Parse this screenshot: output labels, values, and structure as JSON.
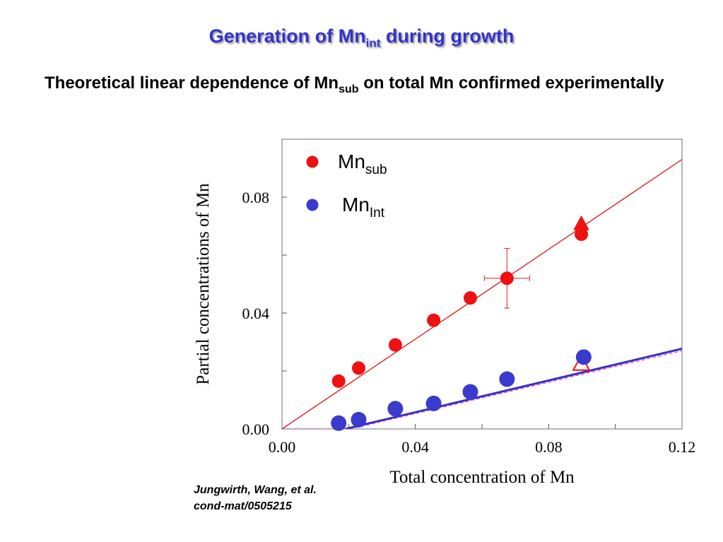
{
  "page": {
    "title_main": "Generation of Mn",
    "title_sub": "int",
    "title_rest": " during growth",
    "subtitle_before": "Theoretical linear dependence of Mn",
    "subtitle_sub": "sub",
    "subtitle_rest": " on total Mn confirmed experimentally",
    "citation_line1": "Jungwirth, Wang, et al.",
    "citation_line2": "cond-mat/0505215"
  },
  "colors": {
    "title": "#3333cc",
    "mn_sub": "#ee1111",
    "mn_int": "#3a3acc",
    "fit_sub": "#dd2222",
    "fit_int": "#3333bb",
    "dashed": "#ee44ee"
  },
  "chart_data": {
    "type": "scatter",
    "xlabel": "Total concentration of Mn",
    "ylabel": "Partial concentrations of Mn",
    "xlim": [
      0,
      0.12
    ],
    "ylim": [
      0,
      0.1
    ],
    "x_ticks": [
      "0.00",
      "0.04",
      "0.08",
      "0.12"
    ],
    "y_ticks": [
      "0.00",
      "0.04",
      "0.08"
    ],
    "legend": {
      "placement": "top-left",
      "sub_label": "Mn",
      "sub_label_sub": "sub",
      "int_label": "Mn",
      "int_label_sub": "Int"
    },
    "series": [
      {
        "name": "Mn sub",
        "points": [
          {
            "x": 0.017,
            "y": 0.0165
          },
          {
            "x": 0.023,
            "y": 0.021
          },
          {
            "x": 0.034,
            "y": 0.029
          },
          {
            "x": 0.0455,
            "y": 0.0375
          },
          {
            "x": 0.0565,
            "y": 0.0452
          },
          {
            "x": 0.0675,
            "y": 0.052,
            "xerr": 0.0068,
            "yerr": 0.0103
          },
          {
            "x": 0.0898,
            "y": 0.0672
          }
        ],
        "triangle_filled": {
          "x": 0.0898,
          "y": 0.0708
        },
        "fit_line": [
          [
            0,
            0
          ],
          [
            0.12,
            0.093
          ]
        ]
      },
      {
        "name": "Mn Int",
        "points": [
          {
            "x": 0.017,
            "y": 0.002
          },
          {
            "x": 0.023,
            "y": 0.0032
          },
          {
            "x": 0.034,
            "y": 0.007
          },
          {
            "x": 0.0455,
            "y": 0.0088
          },
          {
            "x": 0.0565,
            "y": 0.0128
          },
          {
            "x": 0.0675,
            "y": 0.0172
          },
          {
            "x": 0.0905,
            "y": 0.0248
          }
        ],
        "triangle_open": {
          "x": 0.0898,
          "y": 0.0225
        },
        "fit_line": [
          [
            0.019,
            0
          ],
          [
            0.12,
            0.0277
          ]
        ],
        "dashed_line": [
          [
            0,
            0
          ],
          [
            0.0205,
            0
          ],
          [
            0.12,
            0.027
          ]
        ]
      }
    ]
  }
}
